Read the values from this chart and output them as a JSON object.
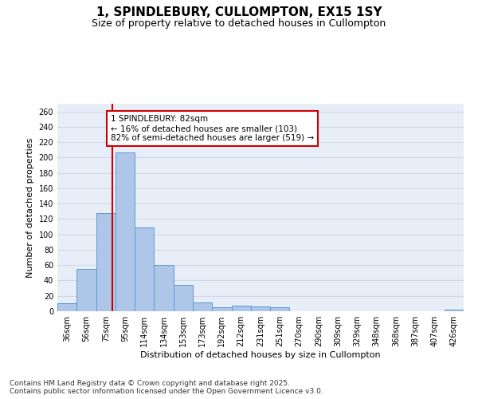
{
  "title": "1, SPINDLEBURY, CULLOMPTON, EX15 1SY",
  "subtitle": "Size of property relative to detached houses in Cullompton",
  "xlabel": "Distribution of detached houses by size in Cullompton",
  "ylabel": "Number of detached properties",
  "categories": [
    "36sqm",
    "56sqm",
    "75sqm",
    "95sqm",
    "114sqm",
    "134sqm",
    "153sqm",
    "173sqm",
    "192sqm",
    "212sqm",
    "231sqm",
    "251sqm",
    "270sqm",
    "290sqm",
    "309sqm",
    "329sqm",
    "348sqm",
    "368sqm",
    "387sqm",
    "407sqm",
    "426sqm"
  ],
  "values": [
    10,
    55,
    128,
    207,
    109,
    60,
    34,
    11,
    5,
    7,
    6,
    5,
    0,
    0,
    0,
    0,
    0,
    0,
    0,
    0,
    2
  ],
  "bar_color": "#aec6e8",
  "bar_edge_color": "#5b9bd5",
  "grid_color": "#d0d8e8",
  "bg_color": "#e8eef8",
  "pct_smaller": 16,
  "n_smaller": 103,
  "pct_larger_semi": 82,
  "n_larger_semi": 519,
  "annotation_box_color": "#cc0000",
  "ylim": [
    0,
    270
  ],
  "yticks": [
    0,
    20,
    40,
    60,
    80,
    100,
    120,
    140,
    160,
    180,
    200,
    220,
    240,
    260
  ],
  "footer_line1": "Contains HM Land Registry data © Crown copyright and database right 2025.",
  "footer_line2": "Contains public sector information licensed under the Open Government Licence v3.0.",
  "title_fontsize": 11,
  "subtitle_fontsize": 9,
  "xlabel_fontsize": 8,
  "ylabel_fontsize": 8,
  "tick_fontsize": 7,
  "annotation_fontsize": 7.5,
  "footer_fontsize": 6.5
}
